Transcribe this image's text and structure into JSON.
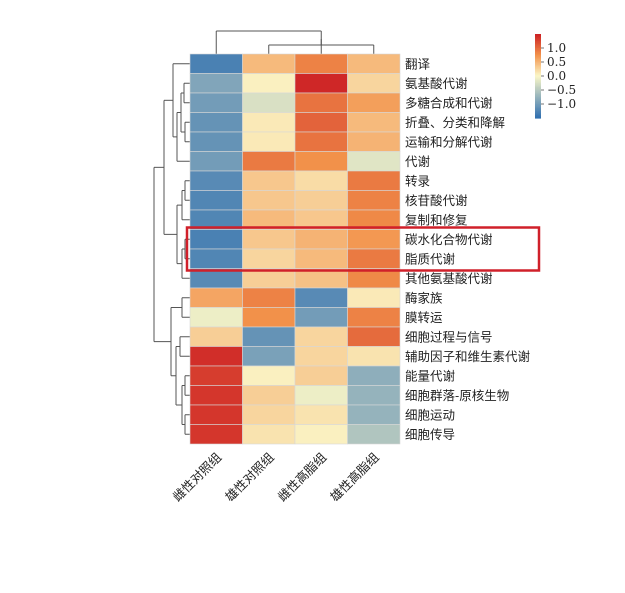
{
  "chart_data": {
    "type": "heatmap",
    "rows": [
      "翻译",
      "氨基酸代谢",
      "多糖合成和代谢",
      "折叠、分类和降解",
      "运输和分解代谢",
      "代谢",
      "转录",
      "核苷酸代谢",
      "复制和修复",
      "碳水化合物代谢",
      "脂质代谢",
      "其他氨基酸代谢",
      "酶家族",
      "膜转运",
      "细胞过程与信号",
      "辅助因子和维生素代谢",
      "能量代谢",
      "细胞群落-原核生物",
      "细胞运动",
      "细胞传导"
    ],
    "columns": [
      "雌性对照组",
      "雄性对照组",
      "雌性高脂组",
      "雄性高脂组"
    ],
    "values": [
      [
        -1.3,
        0.45,
        0.85,
        0.45
      ],
      [
        -0.9,
        0.05,
        1.45,
        0.25
      ],
      [
        -1.0,
        -0.25,
        0.95,
        0.65
      ],
      [
        -1.1,
        0.1,
        1.05,
        0.45
      ],
      [
        -1.1,
        0.1,
        0.95,
        0.5
      ],
      [
        -1.0,
        0.9,
        0.75,
        -0.2
      ],
      [
        -1.2,
        0.35,
        0.2,
        0.9
      ],
      [
        -1.25,
        0.35,
        0.3,
        0.85
      ],
      [
        -1.25,
        0.45,
        0.35,
        0.8
      ],
      [
        -1.3,
        0.35,
        0.5,
        0.7
      ],
      [
        -1.25,
        0.25,
        0.45,
        0.9
      ],
      [
        -1.2,
        0.3,
        0.4,
        0.8
      ],
      [
        0.6,
        0.85,
        -1.2,
        0.1
      ],
      [
        -0.1,
        0.75,
        -1.0,
        0.85
      ],
      [
        0.3,
        -1.1,
        0.25,
        1.0
      ],
      [
        1.4,
        -0.95,
        0.25,
        0.15
      ],
      [
        1.3,
        0.05,
        0.3,
        -0.8
      ],
      [
        1.35,
        0.3,
        -0.1,
        -0.75
      ],
      [
        1.35,
        0.25,
        0.15,
        -0.75
      ],
      [
        1.35,
        0.15,
        0.05,
        -0.55
      ]
    ],
    "color_scale": {
      "low": "#2f6fb0",
      "mid": "#fbf7c8",
      "high": "#cc1f24",
      "range": [
        -1.5,
        1.5
      ]
    },
    "legend": {
      "ticks": [
        "1.0",
        "0.5",
        "0.0",
        "−0.5",
        "−1.0"
      ],
      "tick_values": [
        1.0,
        0.5,
        0.0,
        -0.5,
        -1.0
      ]
    },
    "highlight": {
      "rows": [
        "碳水化合物代谢",
        "脂质代谢"
      ],
      "color": "#d0202a"
    },
    "dendrogram_color": "#555555"
  }
}
